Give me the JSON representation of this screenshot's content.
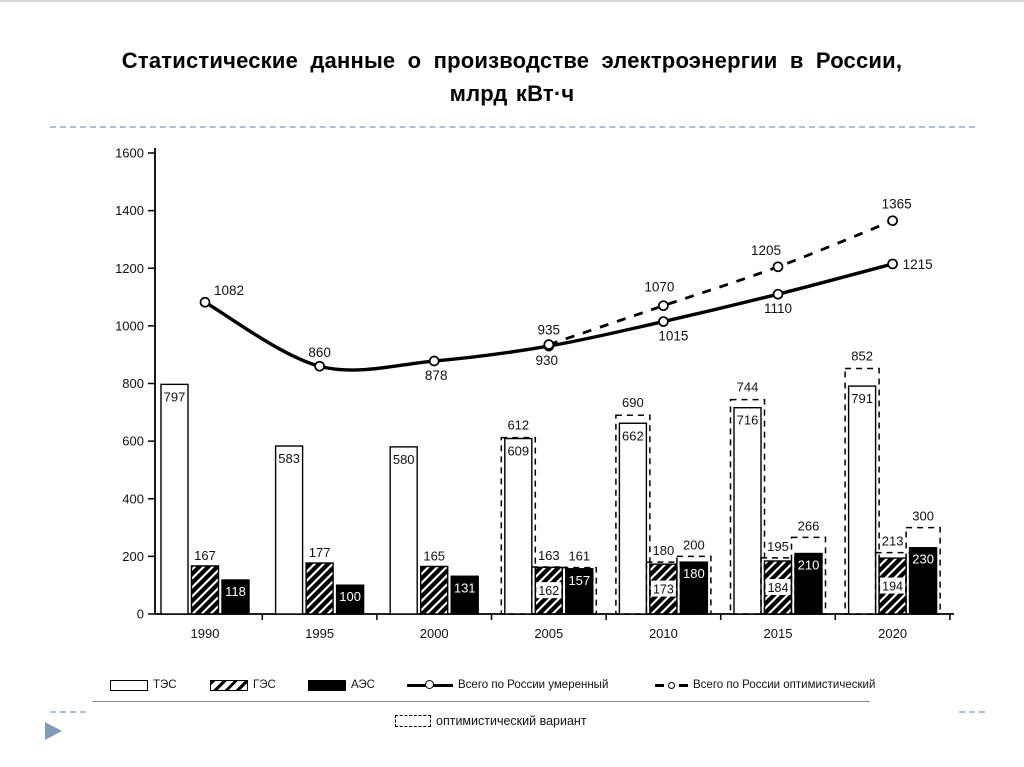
{
  "slide": {
    "title_line1": "Статистические данные о производстве электроэнергии в России,",
    "title_line2": "млрд кВт·ч"
  },
  "chart_data": {
    "type": "bar",
    "subtype": "grouped bars with overlay lines",
    "title": "Статистические данные о производстве электроэнергии в России, млрд кВт·ч",
    "xlabel": "",
    "ylabel": "",
    "unit": "млрд кВт·ч",
    "categories": [
      "1990",
      "1995",
      "2000",
      "2005",
      "2010",
      "2015",
      "2020"
    ],
    "bar_series": [
      {
        "name": "ТЭС",
        "style": "white",
        "values": [
          797,
          583,
          580,
          609,
          662,
          716,
          791
        ],
        "optimistic_values": [
          null,
          null,
          null,
          612,
          690,
          744,
          852
        ]
      },
      {
        "name": "ГЭС",
        "style": "hatched",
        "values": [
          167,
          177,
          165,
          162,
          173,
          184,
          194
        ],
        "optimistic_values": [
          null,
          null,
          null,
          163,
          180,
          195,
          213
        ]
      },
      {
        "name": "АЭС",
        "style": "black",
        "values": [
          118,
          100,
          131,
          157,
          180,
          210,
          230
        ],
        "optimistic_values": [
          null,
          null,
          null,
          161,
          200,
          266,
          300
        ]
      }
    ],
    "line_series": [
      {
        "name": "Всего по России умеренный",
        "style": "solid",
        "categories": [
          "1990",
          "1995",
          "2000",
          "2005",
          "2010",
          "2015",
          "2020"
        ],
        "values": [
          1082,
          860,
          878,
          930,
          1015,
          1110,
          1215
        ]
      },
      {
        "name": "Всего по России оптимистический",
        "style": "dashed",
        "categories": [
          "2005",
          "2010",
          "2015",
          "2020"
        ],
        "values": [
          935,
          1070,
          1205,
          1365
        ]
      }
    ],
    "ylim": [
      0,
      1600
    ],
    "yticks": [
      0,
      200,
      400,
      600,
      800,
      1000,
      1200,
      1400,
      1600
    ],
    "grid": false,
    "legend_position": "bottom"
  },
  "legend": {
    "items": [
      {
        "label": "ТЭС",
        "swatch": "white-box"
      },
      {
        "label": "ГЭС",
        "swatch": "hatched-box"
      },
      {
        "label": "АЭС",
        "swatch": "black-box"
      },
      {
        "label": "Всего по России умеренный",
        "swatch": "solid-line-circle-marker"
      },
      {
        "label": "Всего по России оптимистический",
        "swatch": "dashed-line-circle-marker"
      }
    ],
    "extra_item": {
      "label": "оптимистический вариант",
      "swatch": "dashed-box"
    }
  },
  "colors": {
    "divider_accent": "#a9c2d6",
    "bullet_triangle": "#7f9db9",
    "bar_black": "#000000",
    "text": "#111111",
    "background": "#ffffff"
  }
}
